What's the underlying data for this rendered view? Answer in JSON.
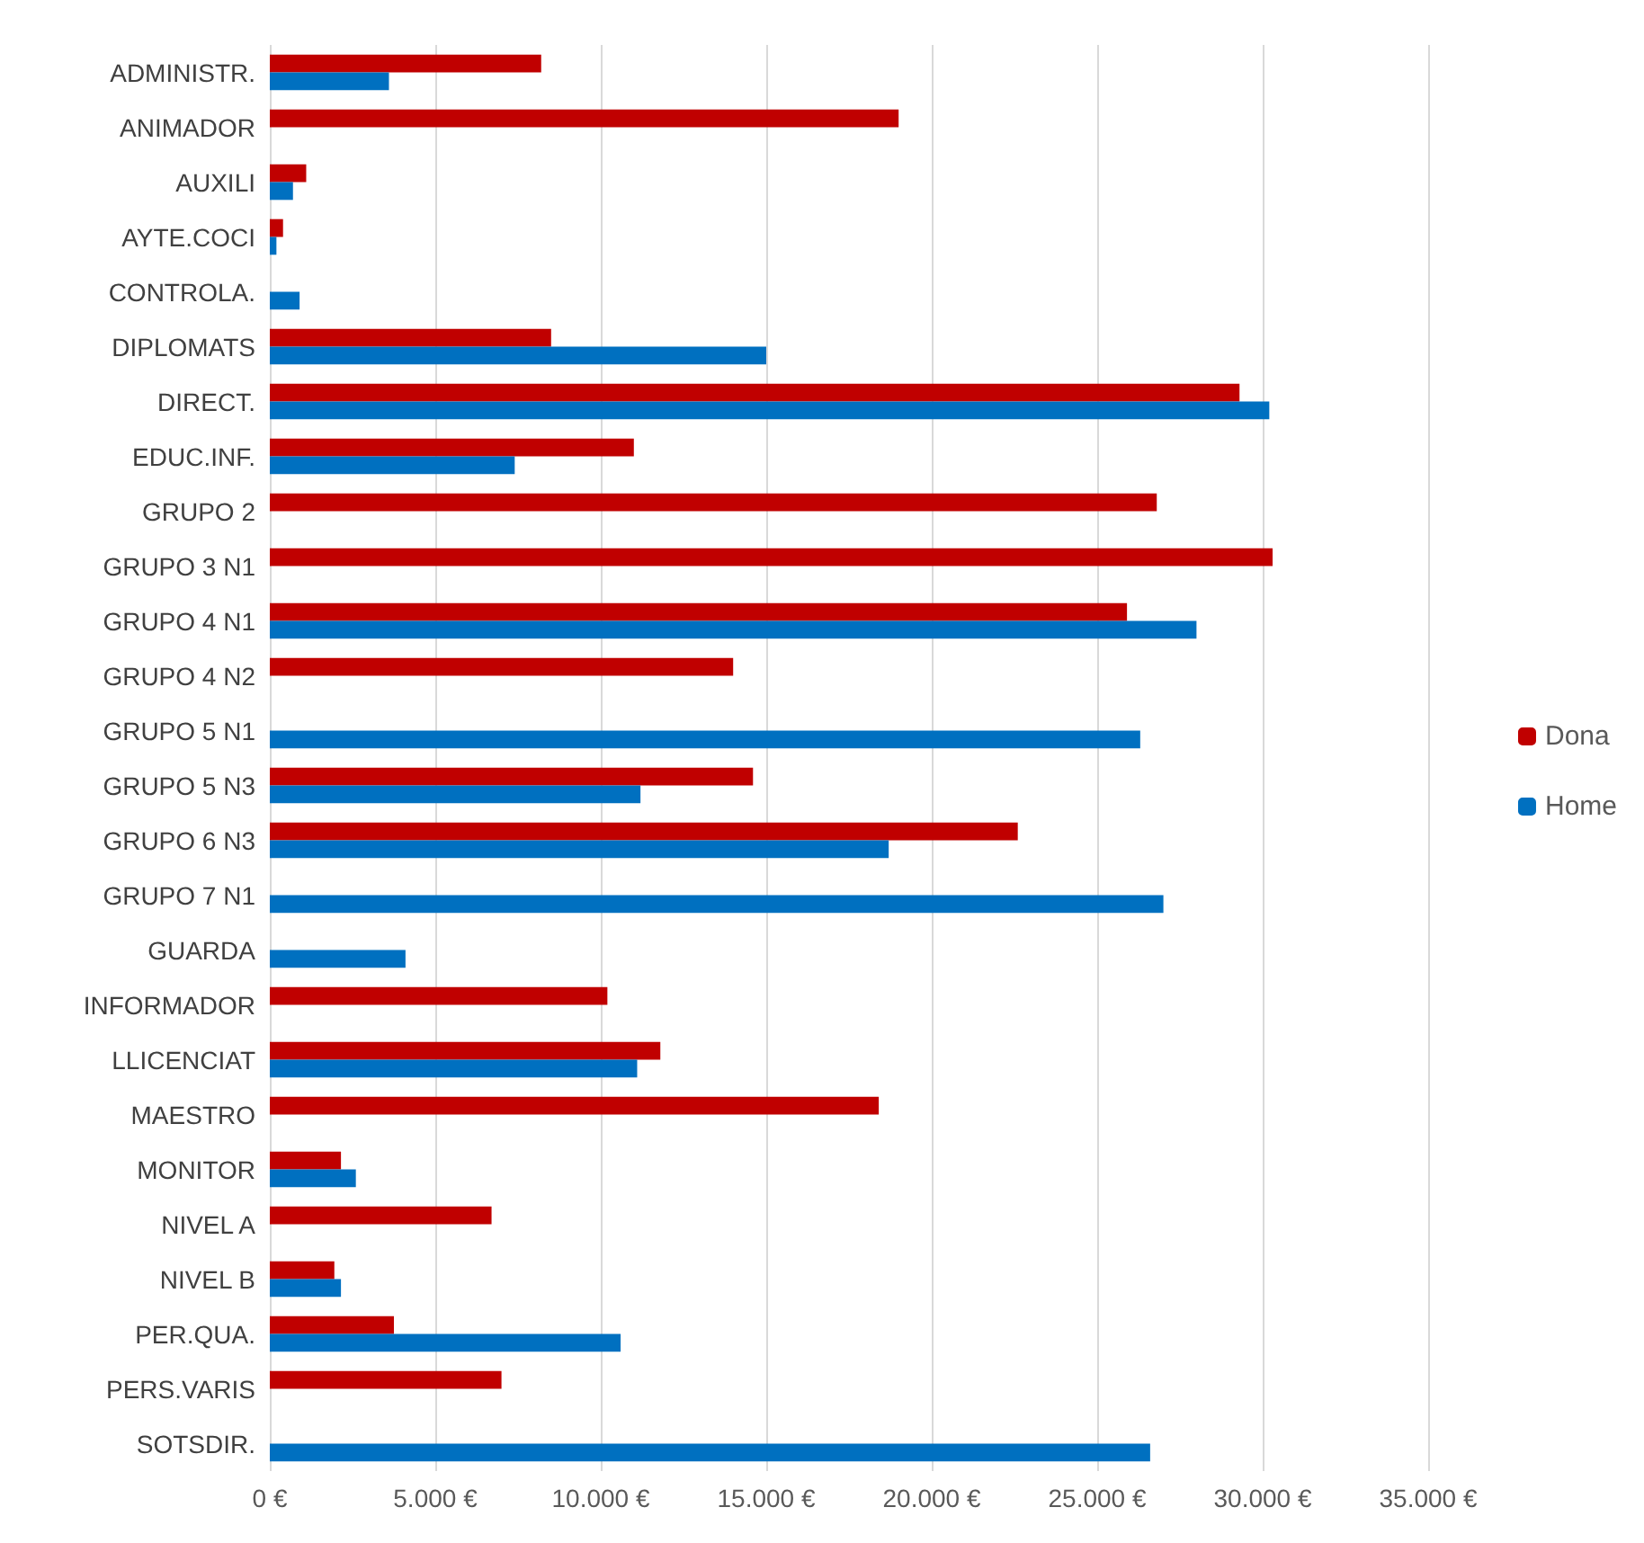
{
  "chart_data": {
    "type": "bar",
    "orientation": "horizontal",
    "categories": [
      "ADMINISTR.",
      "ANIMADOR",
      "AUXILI",
      "AYTE.COCI",
      "CONTROLA.",
      "DIPLOMATS",
      "DIRECT.",
      "EDUC.INF.",
      "GRUPO 2",
      "GRUPO 3 N1",
      "GRUPO 4 N1",
      "GRUPO 4 N2",
      "GRUPO 5 N1",
      "GRUPO 5 N3",
      "GRUPO 6 N3",
      "GRUPO 7 N1",
      "GUARDA",
      "INFORMADOR",
      "LLICENCIAT",
      "MAESTRO",
      "MONITOR",
      "NIVEL A",
      "NIVEL B",
      "PER.QUA.",
      "PERS.VARIS",
      "SOTSDIR."
    ],
    "series": [
      {
        "name": "Dona",
        "color": "#c00000",
        "values": [
          8200,
          19000,
          1100,
          400,
          null,
          8500,
          29300,
          11000,
          26800,
          30300,
          25900,
          14000,
          null,
          14600,
          22600,
          null,
          null,
          10200,
          11800,
          18400,
          2150,
          6700,
          1950,
          3750,
          7000,
          null
        ]
      },
      {
        "name": "Home",
        "color": "#0070c0",
        "values": [
          3600,
          null,
          700,
          200,
          900,
          15000,
          30200,
          7400,
          null,
          null,
          28000,
          null,
          26300,
          11200,
          18700,
          27000,
          4100,
          null,
          11100,
          null,
          2600,
          null,
          2150,
          10600,
          null,
          26600
        ]
      }
    ],
    "xlim": [
      0,
      35000
    ],
    "xticks": [
      {
        "value": 0,
        "label": "0 €"
      },
      {
        "value": 5000,
        "label": "5.000 €"
      },
      {
        "value": 10000,
        "label": "10.000 €"
      },
      {
        "value": 15000,
        "label": "15.000 €"
      },
      {
        "value": 20000,
        "label": "20.000 €"
      },
      {
        "value": 25000,
        "label": "25.000 €"
      },
      {
        "value": 30000,
        "label": "30.000 €"
      },
      {
        "value": 35000,
        "label": "35.000 €"
      }
    ],
    "grid": "x",
    "legend": "right"
  }
}
